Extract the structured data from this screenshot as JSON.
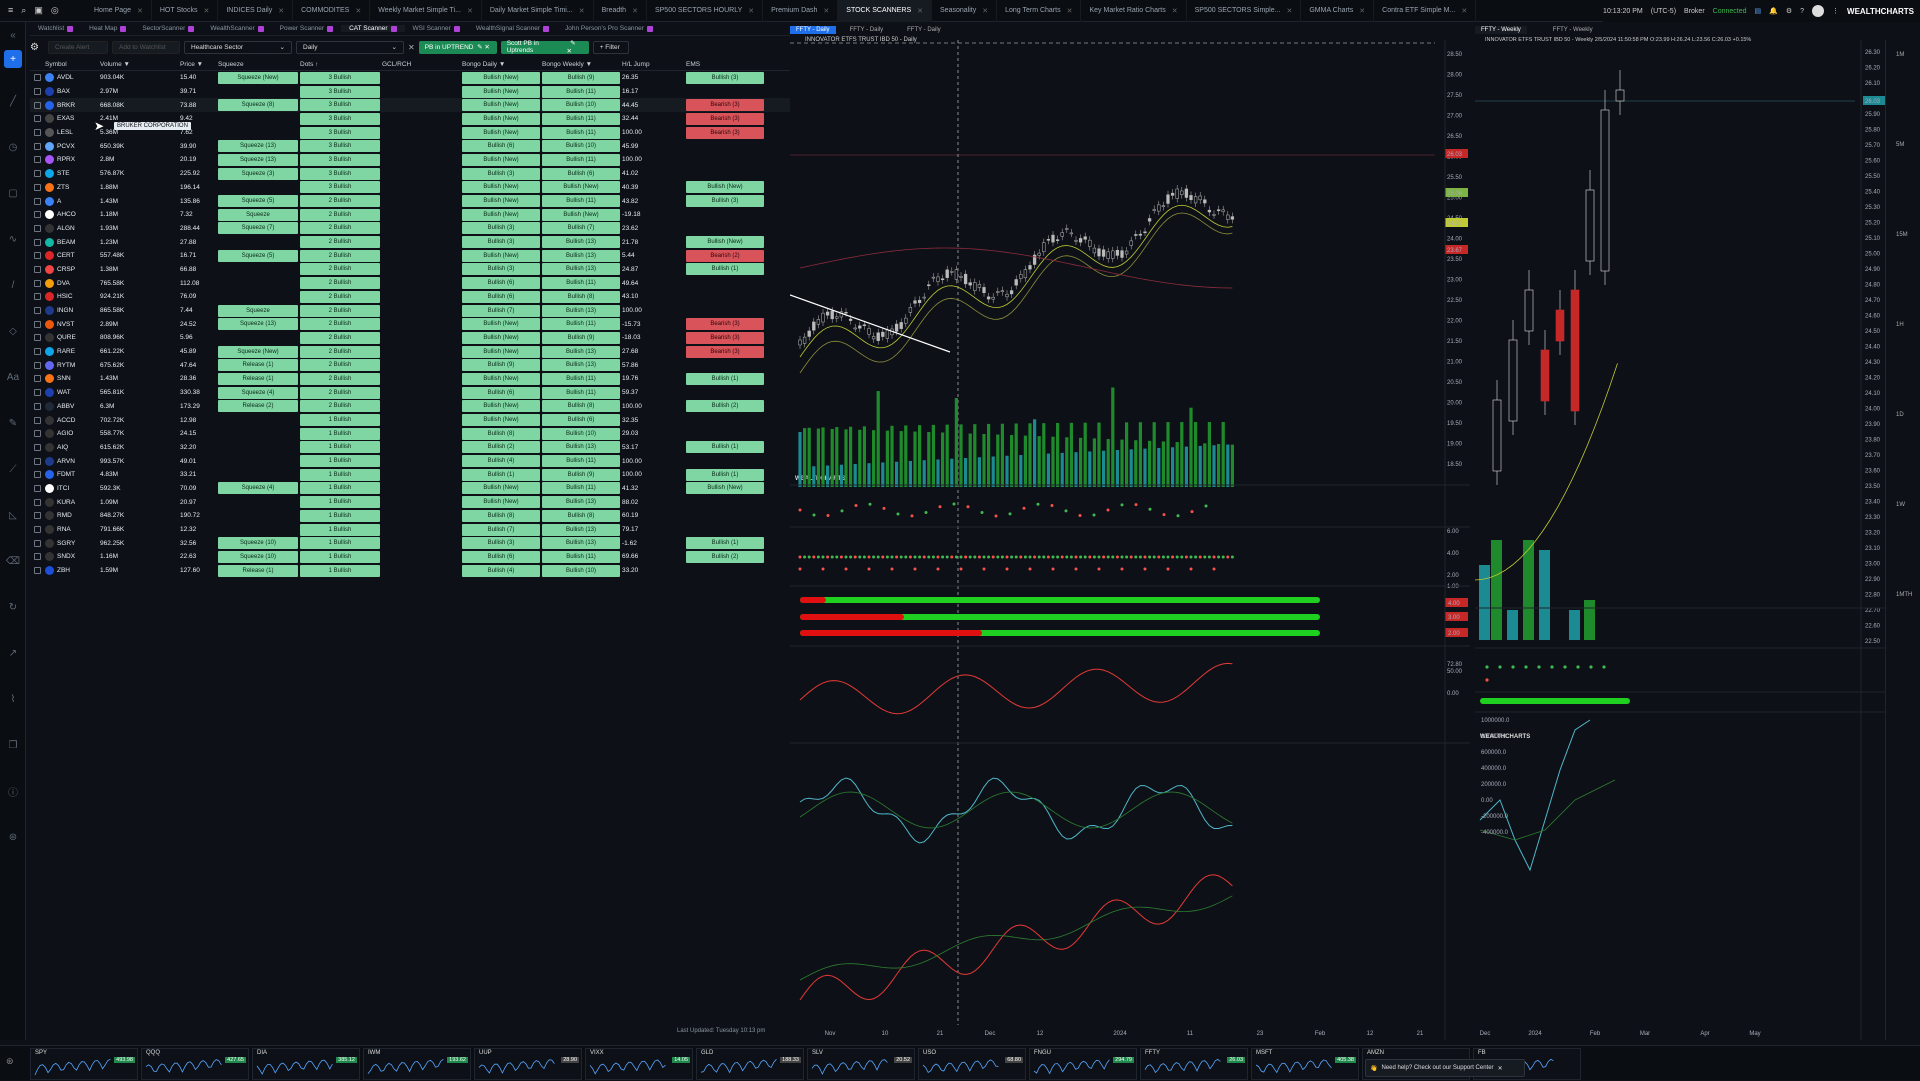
{
  "top_tabs": [
    "Home Page",
    "HOT Stocks",
    "INDICES Daily",
    "COMMODITES",
    "Weekly Market Simple Ti...",
    "Daily Market Simple Timi...",
    "Breadth",
    "SP500 SECTORS HOURLY",
    "Premium Dash",
    "STOCK SCANNERS",
    "Seasonality",
    "Long Term Charts",
    "Key Market Ratio Charts",
    "SP500 SECTORS Simple...",
    "GMMA Charts",
    "Contra ETF Simple M..."
  ],
  "active_tab": "STOCK SCANNERS",
  "status": {
    "time": "10:13:20 PM",
    "tz": "(UTC-5)",
    "broker": "Broker",
    "connected": "Connected",
    "brand": "WEALTHCHARTS"
  },
  "sub_tabs": [
    "Watchlist",
    "Heat Map",
    "SectorScanner",
    "WealthScanner",
    "Power Scanner",
    "CAT Scanner",
    "WSI Scanner",
    "WealthSignal Scanner",
    "John Person's Pro Scanner"
  ],
  "toolbar": {
    "create_alert": "Create Alert",
    "add_watchlist": "Add to Watchlist",
    "sector": "Healthcare Sector",
    "timeframe": "Daily",
    "scan1": "PB in UPTREND",
    "scan2": "Scott PB in Uptrends",
    "filter": "+ Filter"
  },
  "columns": [
    "Symbol",
    "Volume",
    "Price",
    "Squeeze",
    "Dots",
    "GCL/RCH",
    "Bongo Daily",
    "Bongo Weekly",
    "H/L Jump",
    "EMS"
  ],
  "rows": [
    {
      "sym": "AVDL",
      "vol": "903.04K",
      "price": "15.40",
      "sq": "Squeeze (New)",
      "dots": "3 Bullish",
      "bd": "Bullish (New)",
      "bw": "Bullish (9)",
      "hl": "26.35",
      "ems": "Bullish (3)",
      "emsc": "g",
      "lc": "#3b82f6"
    },
    {
      "sym": "BAX",
      "vol": "2.97M",
      "price": "39.71",
      "sq": "",
      "dots": "3 Bullish",
      "bd": "Bullish (New)",
      "bw": "Bullish (11)",
      "hl": "16.17",
      "ems": "",
      "emsc": "",
      "lc": "#1e40af"
    },
    {
      "sym": "BRKR",
      "vol": "668.08K",
      "price": "73.88",
      "sq": "Squeeze (8)",
      "dots": "3 Bullish",
      "bd": "Bullish (New)",
      "bw": "Bullish (10)",
      "hl": "44.45",
      "ems": "Bearish (3)",
      "emsc": "r",
      "lc": "#2563eb"
    },
    {
      "sym": "EXAS",
      "vol": "2.41M",
      "price": "9.42",
      "sq": "",
      "dots": "3 Bullish",
      "bd": "Bullish (New)",
      "bw": "Bullish (11)",
      "hl": "32.44",
      "ems": "Bearish (3)",
      "emsc": "r",
      "lc": "#444"
    },
    {
      "sym": "LESL",
      "vol": "5.36M",
      "price": "7.62",
      "sq": "",
      "dots": "3 Bullish",
      "bd": "Bullish (New)",
      "bw": "Bullish (11)",
      "hl": "100.00",
      "ems": "Bearish (3)",
      "emsc": "r",
      "lc": "#555"
    },
    {
      "sym": "PCVX",
      "vol": "650.39K",
      "price": "39.90",
      "sq": "Squeeze (13)",
      "dots": "3 Bullish",
      "bd": "Bullish (6)",
      "bw": "Bullish (10)",
      "hl": "45.99",
      "ems": "",
      "emsc": "",
      "lc": "#60a5fa"
    },
    {
      "sym": "RPRX",
      "vol": "2.8M",
      "price": "20.19",
      "sq": "Squeeze (13)",
      "dots": "3 Bullish",
      "bd": "Bullish (New)",
      "bw": "Bullish (11)",
      "hl": "100.00",
      "ems": "",
      "emsc": "",
      "lc": "#a855f7"
    },
    {
      "sym": "STE",
      "vol": "576.87K",
      "price": "225.92",
      "sq": "Squeeze (3)",
      "dots": "3 Bullish",
      "bd": "Bullish (3)",
      "bw": "Bullish (6)",
      "hl": "41.02",
      "ems": "",
      "emsc": "",
      "lc": "#0ea5e9"
    },
    {
      "sym": "ZTS",
      "vol": "1.88M",
      "price": "196.14",
      "sq": "",
      "dots": "3 Bullish",
      "bd": "Bullish (New)",
      "bw": "Bullish (New)",
      "hl": "40.39",
      "ems": "Bullish (New)",
      "emsc": "g",
      "lc": "#f97316"
    },
    {
      "sym": "A",
      "vol": "1.43M",
      "price": "135.86",
      "sq": "Squeeze (5)",
      "dots": "2 Bullish",
      "bd": "Bullish (New)",
      "bw": "Bullish (11)",
      "hl": "43.82",
      "ems": "Bullish (3)",
      "emsc": "g",
      "lc": "#3b82f6"
    },
    {
      "sym": "AHCO",
      "vol": "1.18M",
      "price": "7.32",
      "sq": "Squeeze",
      "dots": "2 Bullish",
      "bd": "Bullish (New)",
      "bw": "Bullish (New)",
      "hl": "-19.18",
      "ems": "",
      "emsc": "",
      "lc": "#fff"
    },
    {
      "sym": "ALGN",
      "vol": "1.93M",
      "price": "288.44",
      "sq": "Squeeze (7)",
      "dots": "2 Bullish",
      "bd": "Bullish (3)",
      "bw": "Bullish (7)",
      "hl": "23.62",
      "ems": "",
      "emsc": "",
      "lc": "#333"
    },
    {
      "sym": "BEAM",
      "vol": "1.23M",
      "price": "27.88",
      "sq": "",
      "dots": "2 Bullish",
      "bd": "Bullish (3)",
      "bw": "Bullish (13)",
      "hl": "21.78",
      "ems": "Bullish (New)",
      "emsc": "g",
      "lc": "#14b8a6"
    },
    {
      "sym": "CERT",
      "vol": "557.48K",
      "price": "16.71",
      "sq": "Squeeze (5)",
      "dots": "2 Bullish",
      "bd": "Bullish (New)",
      "bw": "Bullish (13)",
      "hl": "5.44",
      "ems": "Bearish (2)",
      "emsc": "r",
      "lc": "#dc2626"
    },
    {
      "sym": "CRSP",
      "vol": "1.38M",
      "price": "66.88",
      "sq": "",
      "dots": "2 Bullish",
      "bd": "Bullish (3)",
      "bw": "Bullish (13)",
      "hl": "24.87",
      "ems": "Bullish (1)",
      "emsc": "g",
      "lc": "#ef4444"
    },
    {
      "sym": "DVA",
      "vol": "765.58K",
      "price": "112.08",
      "sq": "",
      "dots": "2 Bullish",
      "bd": "Bullish (6)",
      "bw": "Bullish (11)",
      "hl": "49.64",
      "ems": "",
      "emsc": "",
      "lc": "#f59e0b"
    },
    {
      "sym": "HSIC",
      "vol": "924.21K",
      "price": "76.09",
      "sq": "",
      "dots": "2 Bullish",
      "bd": "Bullish (6)",
      "bw": "Bullish (8)",
      "hl": "43.10",
      "ems": "",
      "emsc": "",
      "lc": "#dc2626"
    },
    {
      "sym": "INGN",
      "vol": "865.58K",
      "price": "7.44",
      "sq": "Squeeze",
      "dots": "2 Bullish",
      "bd": "Bullish (7)",
      "bw": "Bullish (13)",
      "hl": "100.00",
      "ems": "",
      "emsc": "",
      "lc": "#1e3a8a"
    },
    {
      "sym": "NVST",
      "vol": "2.89M",
      "price": "24.52",
      "sq": "Squeeze (13)",
      "dots": "2 Bullish",
      "bd": "Bullish (New)",
      "bw": "Bullish (11)",
      "hl": "-15.73",
      "ems": "Bearish (3)",
      "emsc": "r",
      "lc": "#ea580c"
    },
    {
      "sym": "QURE",
      "vol": "808.96K",
      "price": "5.96",
      "sq": "",
      "dots": "2 Bullish",
      "bd": "Bullish (New)",
      "bw": "Bullish (9)",
      "hl": "-18.03",
      "ems": "Bearish (3)",
      "emsc": "r",
      "lc": "#333"
    },
    {
      "sym": "RARE",
      "vol": "661.22K",
      "price": "45.89",
      "sq": "Squeeze (New)",
      "dots": "2 Bullish",
      "bd": "Bullish (New)",
      "bw": "Bullish (13)",
      "hl": "27.68",
      "ems": "Bearish (3)",
      "emsc": "r",
      "lc": "#0ea5e9"
    },
    {
      "sym": "RYTM",
      "vol": "675.62K",
      "price": "47.64",
      "sq": "Release (1)",
      "dots": "2 Bullish",
      "bd": "Bullish (9)",
      "bw": "Bullish (13)",
      "hl": "57.86",
      "ems": "",
      "emsc": "",
      "lc": "#6366f1"
    },
    {
      "sym": "SNN",
      "vol": "1.43M",
      "price": "28.36",
      "sq": "Release (1)",
      "dots": "2 Bullish",
      "bd": "Bullish (New)",
      "bw": "Bullish (11)",
      "hl": "19.76",
      "ems": "Bullish (1)",
      "emsc": "g",
      "lc": "#f97316"
    },
    {
      "sym": "WAT",
      "vol": "565.81K",
      "price": "330.38",
      "sq": "Squeeze (4)",
      "dots": "2 Bullish",
      "bd": "Bullish (6)",
      "bw": "Bullish (11)",
      "hl": "59.37",
      "ems": "",
      "emsc": "",
      "lc": "#1e40af"
    },
    {
      "sym": "ABBV",
      "vol": "6.3M",
      "price": "173.29",
      "sq": "Release (2)",
      "dots": "2 Bullish",
      "bd": "Bullish (New)",
      "bw": "Bullish (8)",
      "hl": "100.00",
      "ems": "Bullish (2)",
      "emsc": "g",
      "lc": "#1f2937"
    },
    {
      "sym": "ACCD",
      "vol": "702.72K",
      "price": "12.98",
      "sq": "",
      "dots": "1 Bullish",
      "bd": "Bullish (New)",
      "bw": "Bullish (6)",
      "hl": "32.35",
      "ems": "",
      "emsc": "",
      "lc": "#333"
    },
    {
      "sym": "AGIO",
      "vol": "558.77K",
      "price": "24.15",
      "sq": "",
      "dots": "1 Bullish",
      "bd": "Bullish (8)",
      "bw": "Bullish (10)",
      "hl": "29.03",
      "ems": "",
      "emsc": "",
      "lc": "#333"
    },
    {
      "sym": "AIQ",
      "vol": "615.62K",
      "price": "32.20",
      "sq": "",
      "dots": "1 Bullish",
      "bd": "Bullish (2)",
      "bw": "Bullish (13)",
      "hl": "53.17",
      "ems": "Bullish (1)",
      "emsc": "g",
      "lc": "#333"
    },
    {
      "sym": "ARVN",
      "vol": "993.57K",
      "price": "49.01",
      "sq": "",
      "dots": "1 Bullish",
      "bd": "Bullish (4)",
      "bw": "Bullish (11)",
      "hl": "100.00",
      "ems": "",
      "emsc": "",
      "lc": "#1e3a8a"
    },
    {
      "sym": "FDMT",
      "vol": "4.83M",
      "price": "33.21",
      "sq": "",
      "dots": "1 Bullish",
      "bd": "Bullish (1)",
      "bw": "Bullish (9)",
      "hl": "100.00",
      "ems": "Bullish (1)",
      "emsc": "g",
      "lc": "#2563eb"
    },
    {
      "sym": "ITCI",
      "vol": "592.3K",
      "price": "70.09",
      "sq": "Squeeze (4)",
      "dots": "1 Bullish",
      "bd": "Bullish (New)",
      "bw": "Bullish (11)",
      "hl": "41.32",
      "ems": "Bullish (New)",
      "emsc": "g",
      "lc": "#fff"
    },
    {
      "sym": "KURA",
      "vol": "1.09M",
      "price": "20.97",
      "sq": "",
      "dots": "1 Bullish",
      "bd": "Bullish (New)",
      "bw": "Bullish (13)",
      "hl": "88.02",
      "ems": "",
      "emsc": "",
      "lc": "#333"
    },
    {
      "sym": "RMD",
      "vol": "848.27K",
      "price": "190.72",
      "sq": "",
      "dots": "1 Bullish",
      "bd": "Bullish (8)",
      "bw": "Bullish (8)",
      "hl": "60.19",
      "ems": "",
      "emsc": "",
      "lc": "#333"
    },
    {
      "sym": "RNA",
      "vol": "791.66K",
      "price": "12.32",
      "sq": "",
      "dots": "1 Bullish",
      "bd": "Bullish (7)",
      "bw": "Bullish (13)",
      "hl": "79.17",
      "ems": "",
      "emsc": "",
      "lc": "#333"
    },
    {
      "sym": "SGRY",
      "vol": "962.25K",
      "price": "32.56",
      "sq": "Squeeze (10)",
      "dots": "1 Bullish",
      "bd": "Bullish (3)",
      "bw": "Bullish (13)",
      "hl": "-1.62",
      "ems": "Bullish (1)",
      "emsc": "g",
      "lc": "#333"
    },
    {
      "sym": "SNDX",
      "vol": "1.16M",
      "price": "22.63",
      "sq": "Squeeze (10)",
      "dots": "1 Bullish",
      "bd": "Bullish (6)",
      "bw": "Bullish (11)",
      "hl": "69.66",
      "ems": "Bullish (2)",
      "emsc": "g",
      "lc": "#333"
    },
    {
      "sym": "ZBH",
      "vol": "1.59M",
      "price": "127.60",
      "sq": "Release (1)",
      "dots": "1 Bullish",
      "bd": "Bullish (4)",
      "bw": "Bullish (10)",
      "hl": "33.20",
      "ems": "",
      "emsc": "",
      "lc": "#1d4ed8"
    }
  ],
  "tooltip": "BRUKER CORPORATION",
  "last_updated": "Last Updated: Tuesday 10:13 pm",
  "daily_chart": {
    "tab1": "FFTY - Daily",
    "tab2": "FFTY - Daily",
    "tab3": "FFTY - Daily",
    "title": "INNOVATOR ETFS TRUST IBD 50 - Daily",
    "watermark": "WEALTHCHARTS",
    "y_ticks": [
      "28.50",
      "28.00",
      "27.50",
      "27.00",
      "26.50",
      "26.00",
      "25.50",
      "25.00",
      "24.50",
      "24.00",
      "23.50",
      "23.00",
      "22.50",
      "22.00",
      "21.50",
      "21.00",
      "20.50",
      "20.00",
      "19.50",
      "19.00",
      "18.50"
    ],
    "price_tag": "26.03",
    "tag2": "25.06",
    "tag3": "24.32",
    "tag4": "23.67",
    "x_ticks": [
      "Nov",
      "10",
      "21",
      "Dec",
      "12",
      "2024",
      "11",
      "23",
      "Feb",
      "12",
      "21"
    ]
  },
  "weekly_chart": {
    "tab1": "FFTY - Weekly",
    "tab2": "FFTY - Weekly",
    "title": "INNOVATOR ETFS TRUST IBD 50 - Weekly 2/5/2024 11:50:58 PM O:23.99 H:26.24 L:23.56 C:26.03 +0.15%",
    "y_ticks": [
      "26.30",
      "26.20",
      "26.10",
      "26.00",
      "25.90",
      "25.80",
      "25.70",
      "25.60",
      "25.50",
      "25.40",
      "25.30",
      "25.20",
      "25.10",
      "25.00",
      "24.90",
      "24.80",
      "24.70",
      "24.60",
      "24.50",
      "24.40",
      "24.30",
      "24.20",
      "24.10",
      "24.00",
      "23.90",
      "23.80",
      "23.70",
      "23.60",
      "23.50",
      "23.40",
      "23.30",
      "23.20",
      "23.10",
      "23.00",
      "22.90",
      "22.80",
      "22.70",
      "22.60",
      "22.50"
    ],
    "x_ticks": [
      "Dec",
      "2024",
      "Feb",
      "Mar",
      "Apr",
      "May"
    ],
    "timeframes": [
      "1M",
      "5M",
      "15M",
      "1H",
      "1D",
      "1W",
      "1MTH"
    ]
  },
  "footer_tickers": [
    {
      "sym": "SPY",
      "px": "493.98",
      "c": "#1f8a4c"
    },
    {
      "sym": "QQQ",
      "px": "427.65",
      "c": "#1f8a4c"
    },
    {
      "sym": "DIA",
      "px": "385.12",
      "c": "#1f8a4c"
    },
    {
      "sym": "IWM",
      "px": "193.62",
      "c": "#1f8a4c"
    },
    {
      "sym": "UUP",
      "px": "28.90",
      "c": "#444"
    },
    {
      "sym": "VIXX",
      "px": "14.05",
      "c": "#1f8a4c"
    },
    {
      "sym": "GLD",
      "px": "188.33",
      "c": "#444"
    },
    {
      "sym": "SLV",
      "px": "20.52",
      "c": "#444"
    },
    {
      "sym": "USO",
      "px": "68.80",
      "c": "#444"
    },
    {
      "sym": "FNGU",
      "px": "294.79",
      "c": "#1f8a4c"
    },
    {
      "sym": "FFTY",
      "px": "26.03",
      "c": "#1f8a4c"
    },
    {
      "sym": "MSFT",
      "px": "405.38",
      "c": "#1f8a4c"
    },
    {
      "sym": "AMZN",
      "px": "",
      "c": "#444"
    },
    {
      "sym": "FB",
      "px": "",
      "c": "#444"
    }
  ],
  "support": "Need help? Check out our Support Center"
}
